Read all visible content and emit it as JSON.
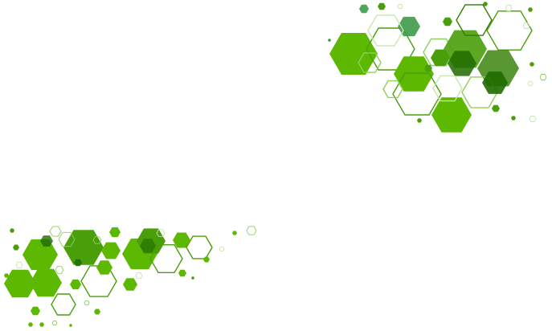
{
  "artwork": {
    "subject": "abstract-green-hexagon-pattern",
    "palette": {
      "background": "#ffffff",
      "bright_green": "#5cb800",
      "mid_green": "#4a9e0a",
      "dark_green": "#2f7d00",
      "teal_green": "#3e9a4a",
      "deep_green": "#1f6b00",
      "light_outline": "#8fcf5a",
      "pale_outline": "#c9e6b0"
    }
  }
}
